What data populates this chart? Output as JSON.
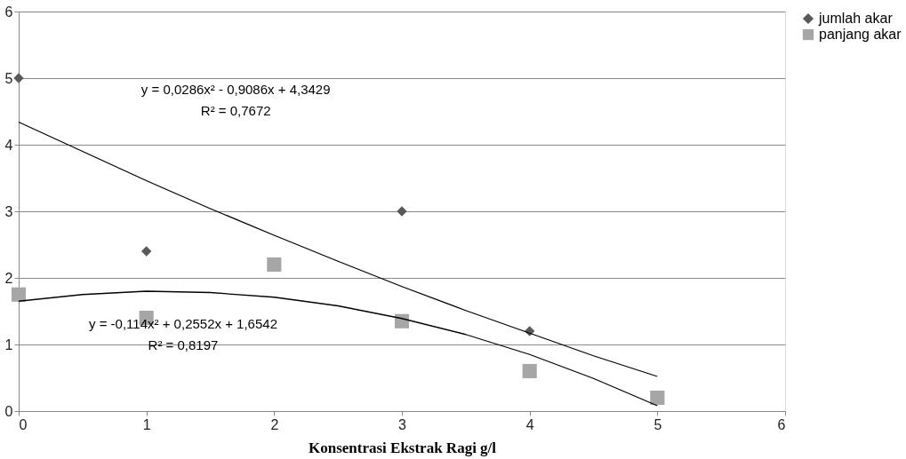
{
  "chart_data": {
    "type": "scatter",
    "xlabel": "Konsentrasi Ekstrak Ragi g/l",
    "x": [
      0,
      1,
      2,
      3,
      4,
      5
    ],
    "series": [
      {
        "name": "jumlah akar",
        "color": "#595959",
        "marker": "diamond",
        "values": [
          5,
          2.4,
          null,
          3,
          1.2,
          null
        ]
      },
      {
        "name": "panjang akar",
        "color": "#a6a6a6",
        "marker": "square",
        "values": [
          1.75,
          1.4,
          2.2,
          1.35,
          0.6,
          0.2
        ]
      },
      {
        "type": "line",
        "color": "#000000",
        "x": [
          0,
          0.5,
          1,
          1.5,
          2,
          2.5,
          3,
          3.5,
          4,
          4.5,
          5
        ],
        "values": [
          4.34,
          3.9,
          3.46,
          3.04,
          2.64,
          2.25,
          1.87,
          1.51,
          1.17,
          0.83,
          0.52
        ]
      },
      {
        "type": "line",
        "color": "#000000",
        "x": [
          0,
          0.5,
          1,
          1.5,
          2,
          2.5,
          3,
          3.5,
          4,
          4.5,
          5
        ],
        "values": [
          1.65,
          1.75,
          1.8,
          1.78,
          1.71,
          1.58,
          1.39,
          1.15,
          0.85,
          0.49,
          0.08
        ]
      }
    ],
    "annotations": [
      "y = 0,0286x² - 0,9086x + 4,3429",
      "R² = 0,7672",
      "y = -0,114x² + 0,2552x + 1,6542",
      "R² = 0,8197"
    ],
    "xlim": [
      0,
      6
    ],
    "xticks": [
      0,
      1,
      2,
      3,
      4,
      5,
      6
    ],
    "ylim": [
      0,
      6
    ],
    "yticks": [
      0,
      1,
      2,
      3,
      4,
      5,
      6
    ],
    "grid": "y",
    "legend": "right"
  }
}
